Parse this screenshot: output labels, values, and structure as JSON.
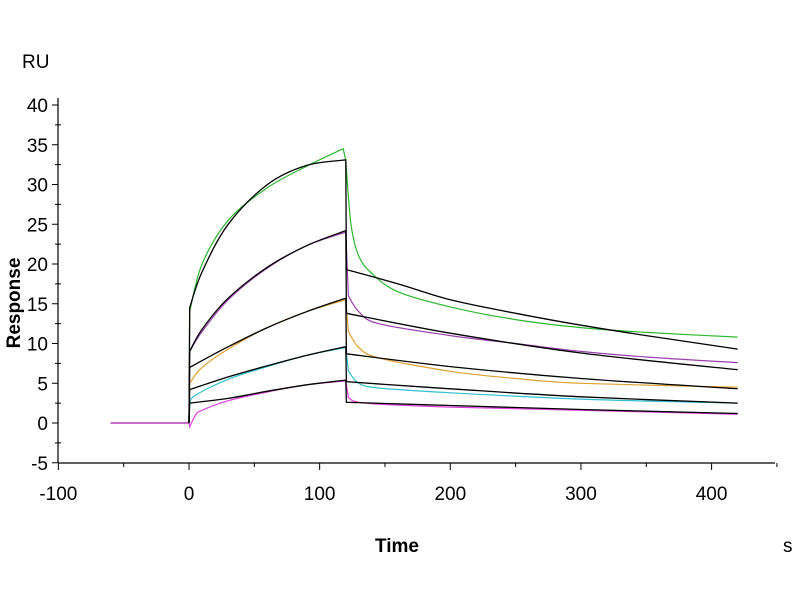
{
  "chart_data": {
    "type": "line",
    "title": "",
    "xlabel": "Time",
    "xunit": "s",
    "ylabel": "Response",
    "yunit": "RU",
    "xlim": [
      -100,
      450
    ],
    "ylim": [
      -5,
      40
    ],
    "xticks": [
      -100,
      0,
      100,
      200,
      300,
      400
    ],
    "yticks": [
      -5,
      0,
      5,
      10,
      15,
      20,
      25,
      30,
      35,
      40
    ],
    "grid": false,
    "legend": "none",
    "series": [
      {
        "name": "curve-1",
        "color": "#2db82d",
        "points": [
          [
            -60,
            0
          ],
          [
            0,
            0
          ],
          [
            0.5,
            14
          ],
          [
            10,
            20
          ],
          [
            30,
            25.5
          ],
          [
            60,
            29.6
          ],
          [
            90,
            32.3
          ],
          [
            118,
            34.5
          ],
          [
            120,
            33
          ],
          [
            124,
            25
          ],
          [
            130,
            21
          ],
          [
            140,
            18.8
          ],
          [
            160,
            16.5
          ],
          [
            200,
            14.6
          ],
          [
            250,
            13
          ],
          [
            300,
            12
          ],
          [
            350,
            11.4
          ],
          [
            420,
            10.8
          ]
        ]
      },
      {
        "name": "fit-1",
        "color": "#000000",
        "points": [
          [
            0,
            0
          ],
          [
            0.5,
            14.5
          ],
          [
            10,
            19
          ],
          [
            30,
            25
          ],
          [
            60,
            30
          ],
          [
            90,
            32.4
          ],
          [
            120,
            33.1
          ],
          [
            120.5,
            19.3
          ],
          [
            160,
            17.5
          ],
          [
            200,
            15.5
          ],
          [
            250,
            13.8
          ],
          [
            300,
            12.3
          ],
          [
            350,
            11
          ],
          [
            420,
            9.3
          ]
        ]
      },
      {
        "name": "curve-2",
        "color": "#9a3fb0",
        "points": [
          [
            -60,
            0
          ],
          [
            0,
            0
          ],
          [
            0.5,
            9
          ],
          [
            10,
            11.5
          ],
          [
            30,
            15.5
          ],
          [
            60,
            19.5
          ],
          [
            90,
            22.3
          ],
          [
            120,
            24
          ],
          [
            122,
            16
          ],
          [
            130,
            14
          ],
          [
            145,
            12.5
          ],
          [
            200,
            11
          ],
          [
            250,
            10
          ],
          [
            300,
            9
          ],
          [
            350,
            8.3
          ],
          [
            420,
            7.6
          ]
        ]
      },
      {
        "name": "fit-2",
        "color": "#000000",
        "points": [
          [
            0,
            0
          ],
          [
            0.5,
            9
          ],
          [
            10,
            11.8
          ],
          [
            30,
            15.7
          ],
          [
            60,
            19.6
          ],
          [
            90,
            22.3
          ],
          [
            120,
            24.2
          ],
          [
            120.5,
            13.8
          ],
          [
            200,
            11.3
          ],
          [
            300,
            8.8
          ],
          [
            420,
            6.7
          ]
        ]
      },
      {
        "name": "curve-3",
        "color": "#e0a030",
        "points": [
          [
            -60,
            0
          ],
          [
            0,
            0
          ],
          [
            0.5,
            5
          ],
          [
            10,
            7
          ],
          [
            30,
            9.3
          ],
          [
            60,
            12
          ],
          [
            90,
            14
          ],
          [
            120,
            15.5
          ],
          [
            122,
            11.5
          ],
          [
            130,
            9.5
          ],
          [
            145,
            8.2
          ],
          [
            200,
            6.5
          ],
          [
            250,
            5.6
          ],
          [
            300,
            5
          ],
          [
            420,
            4.5
          ]
        ]
      },
      {
        "name": "fit-3",
        "color": "#000000",
        "points": [
          [
            0,
            0
          ],
          [
            0.5,
            7
          ],
          [
            30,
            9.6
          ],
          [
            60,
            12
          ],
          [
            90,
            14
          ],
          [
            120,
            15.7
          ],
          [
            120.5,
            8.7
          ],
          [
            200,
            7.1
          ],
          [
            300,
            5.6
          ],
          [
            420,
            4.3
          ]
        ]
      },
      {
        "name": "curve-4",
        "color": "#30c0d0",
        "points": [
          [
            -60,
            0
          ],
          [
            0,
            0
          ],
          [
            0.5,
            2.5
          ],
          [
            5,
            3.5
          ],
          [
            30,
            5.5
          ],
          [
            60,
            7.1
          ],
          [
            90,
            8.5
          ],
          [
            120,
            9.5
          ],
          [
            122,
            6.5
          ],
          [
            130,
            5
          ],
          [
            145,
            4.4
          ],
          [
            200,
            3.8
          ],
          [
            300,
            3
          ],
          [
            420,
            2.5
          ]
        ]
      },
      {
        "name": "fit-4",
        "color": "#000000",
        "points": [
          [
            0,
            0
          ],
          [
            0.5,
            4.2
          ],
          [
            30,
            5.8
          ],
          [
            60,
            7.2
          ],
          [
            90,
            8.5
          ],
          [
            120,
            9.6
          ],
          [
            120.5,
            5.2
          ],
          [
            200,
            4.3
          ],
          [
            300,
            3.3
          ],
          [
            420,
            2.5
          ]
        ]
      },
      {
        "name": "curve-5",
        "color": "#e040e0",
        "points": [
          [
            -60,
            0
          ],
          [
            0,
            0
          ],
          [
            0.5,
            -0.5
          ],
          [
            5,
            1
          ],
          [
            10,
            1.6
          ],
          [
            30,
            2.8
          ],
          [
            60,
            3.9
          ],
          [
            90,
            4.8
          ],
          [
            120,
            5.3
          ],
          [
            122,
            3.2
          ],
          [
            135,
            2.5
          ],
          [
            200,
            2
          ],
          [
            300,
            1.6
          ],
          [
            420,
            1.1
          ]
        ]
      },
      {
        "name": "fit-5",
        "color": "#000000",
        "points": [
          [
            0,
            0
          ],
          [
            0.5,
            2.5
          ],
          [
            30,
            3.1
          ],
          [
            60,
            4
          ],
          [
            90,
            4.8
          ],
          [
            120,
            5.4
          ],
          [
            120.5,
            2.6
          ],
          [
            200,
            2.2
          ],
          [
            300,
            1.7
          ],
          [
            420,
            1.2
          ]
        ]
      }
    ]
  }
}
